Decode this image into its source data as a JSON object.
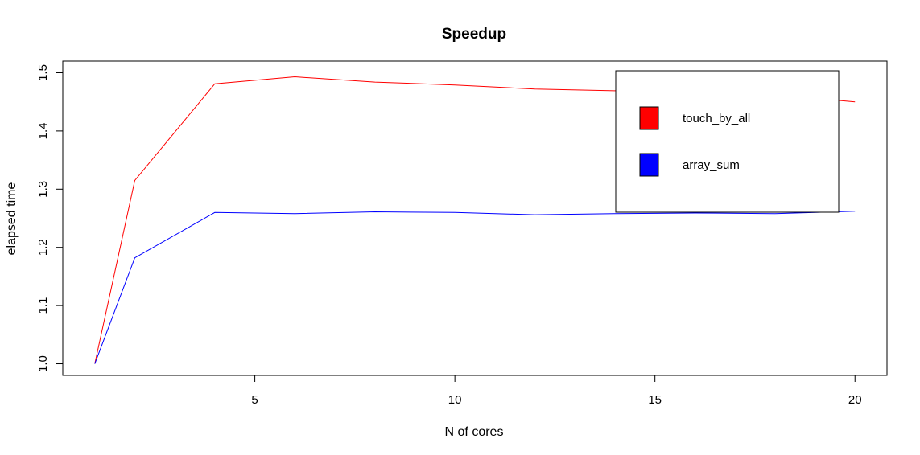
{
  "chart_data": {
    "type": "line",
    "title": "Speedup",
    "xlabel": "N of cores",
    "ylabel": "elapsed time",
    "xlim": [
      0.2,
      20.8
    ],
    "ylim": [
      0.98,
      1.52
    ],
    "x_ticks": [
      5,
      10,
      15,
      20
    ],
    "y_ticks": [
      1.0,
      1.1,
      1.2,
      1.3,
      1.4,
      1.5
    ],
    "x_tick_labels": [
      "5",
      "10",
      "15",
      "20"
    ],
    "y_tick_labels": [
      "1.0",
      "1.1",
      "1.2",
      "1.3",
      "1.4",
      "1.5"
    ],
    "grid": false,
    "legend_position": "top-right",
    "series": [
      {
        "name": "touch_by_all",
        "color": "#ff0000",
        "x": [
          1,
          2,
          4,
          6,
          8,
          10,
          12,
          14,
          16,
          18,
          20
        ],
        "y": [
          1.0,
          1.315,
          1.481,
          1.493,
          1.484,
          1.479,
          1.472,
          1.469,
          1.466,
          1.462,
          1.45
        ]
      },
      {
        "name": "array_sum",
        "color": "#0000ff",
        "x": [
          1,
          2,
          4,
          6,
          8,
          10,
          12,
          14,
          16,
          18,
          20
        ],
        "y": [
          1.0,
          1.182,
          1.26,
          1.258,
          1.261,
          1.26,
          1.256,
          1.258,
          1.259,
          1.258,
          1.262
        ]
      }
    ]
  }
}
